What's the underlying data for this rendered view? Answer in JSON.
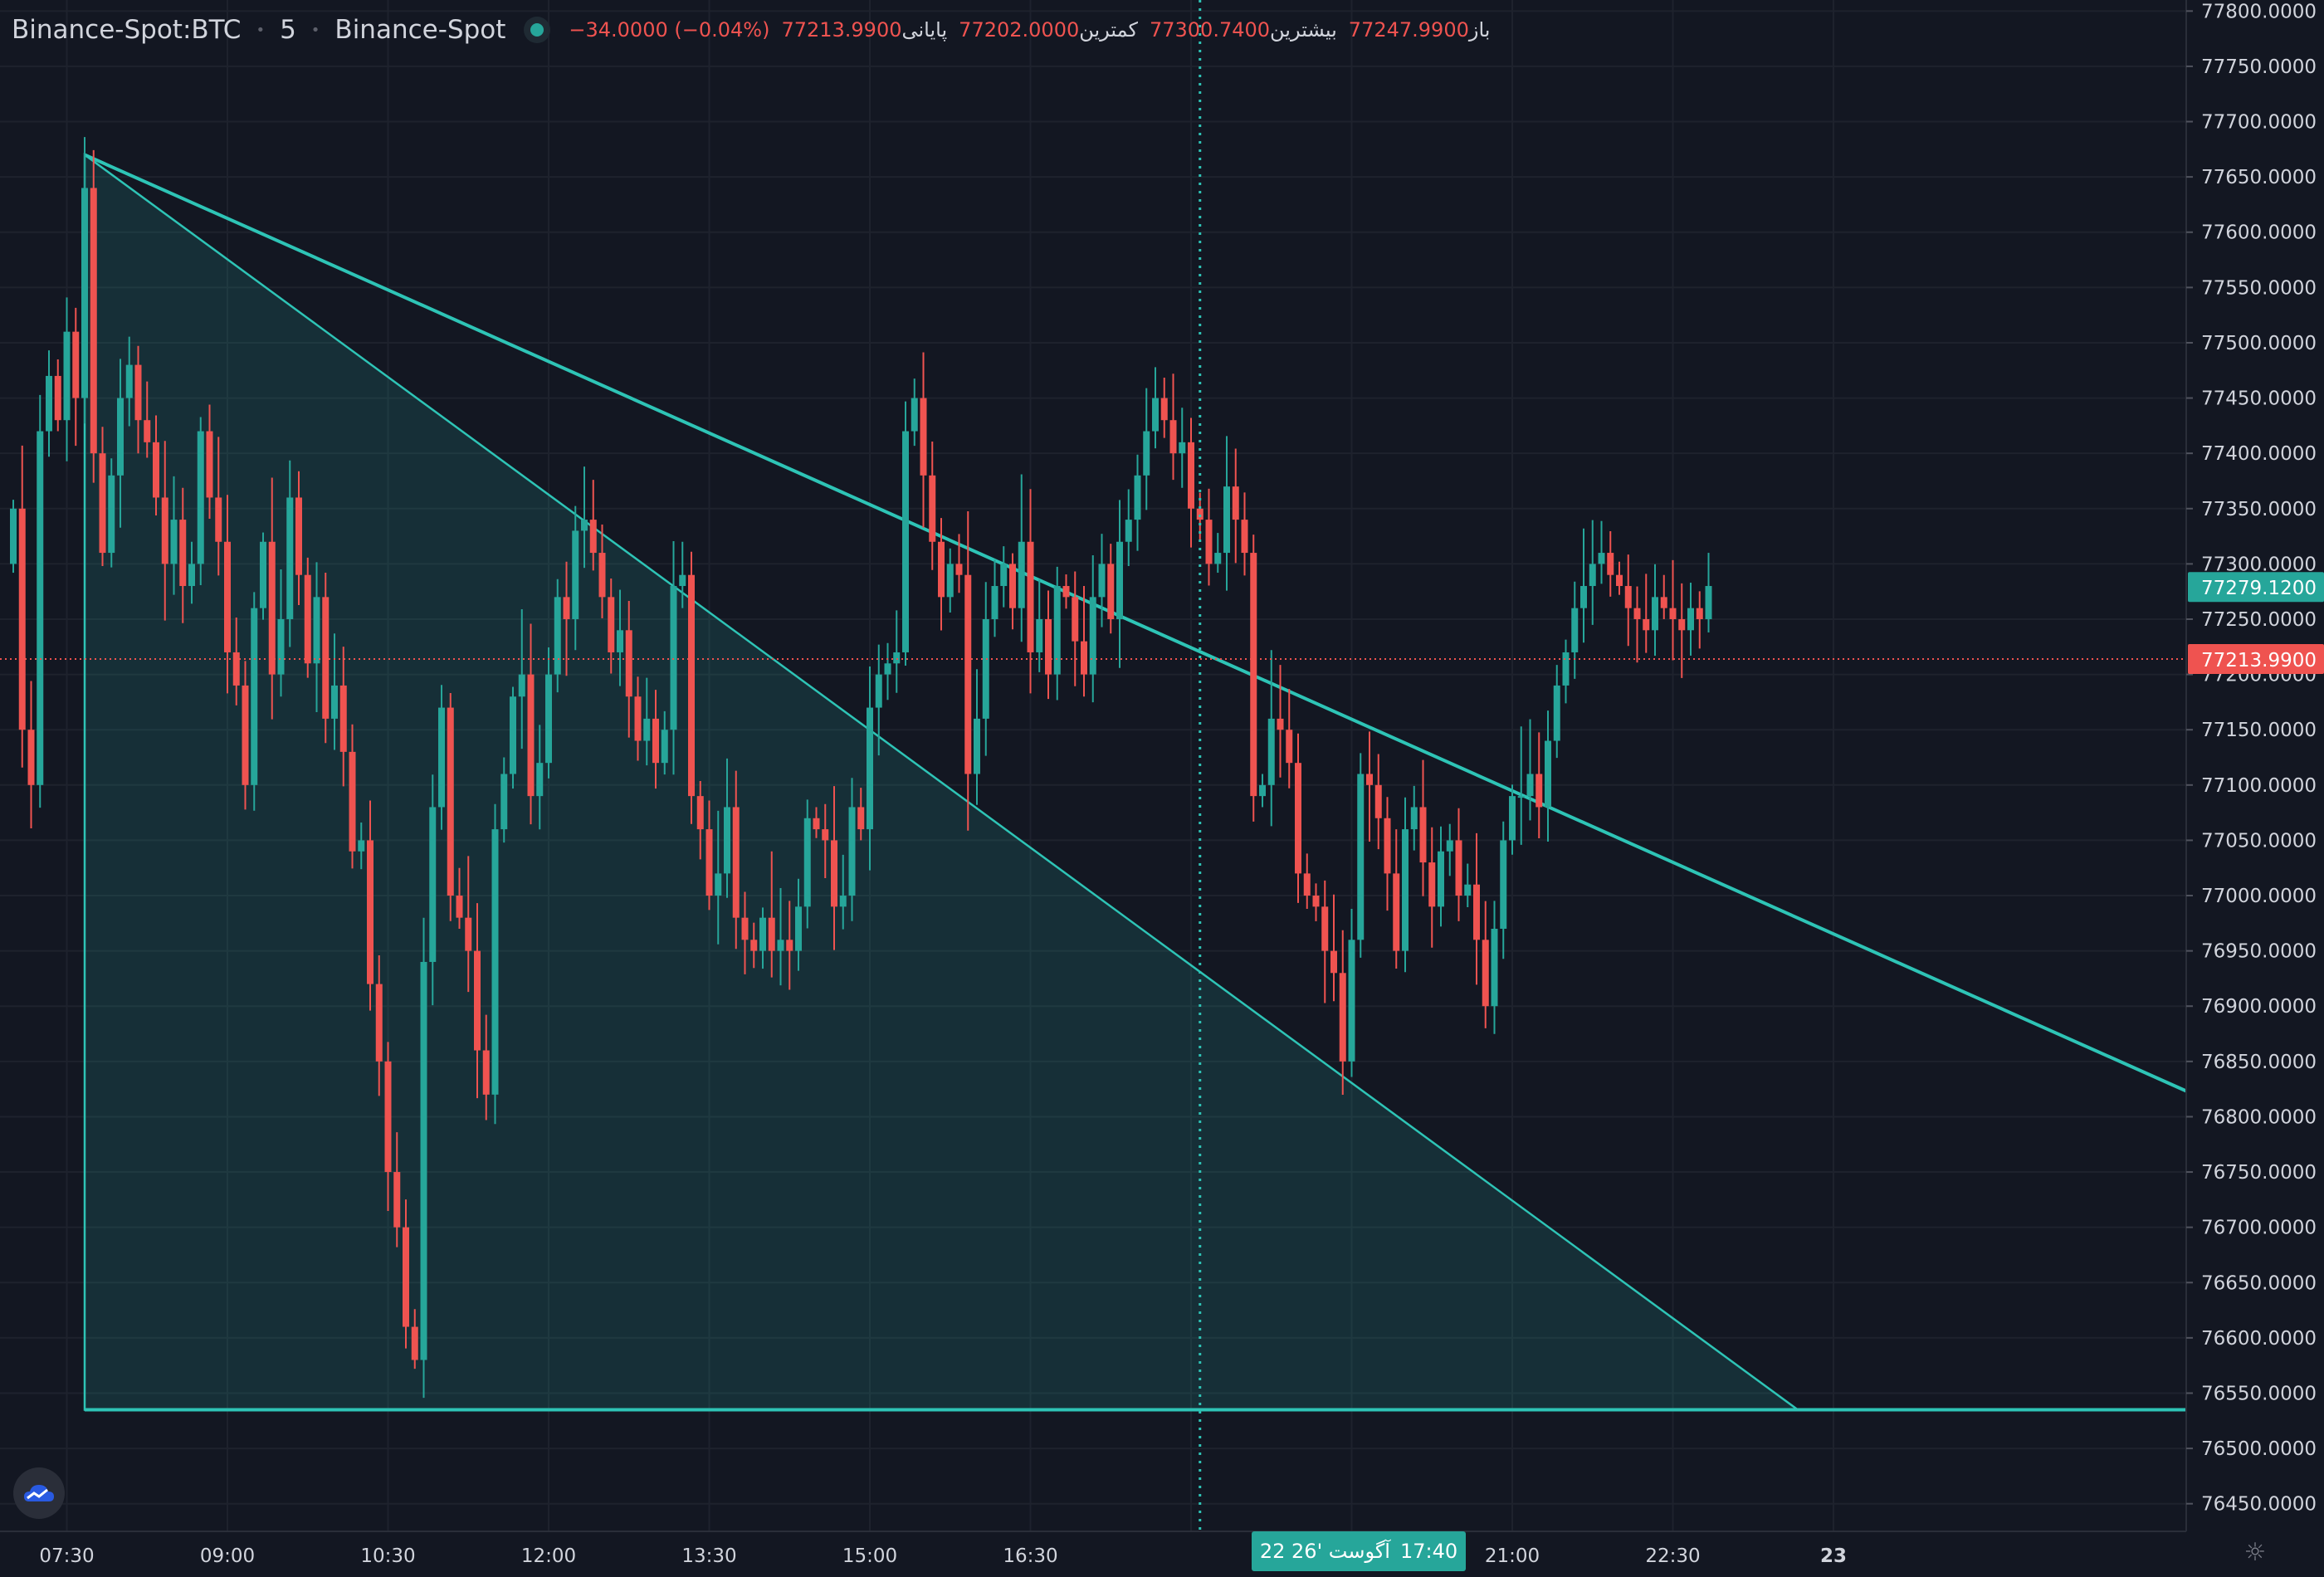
{
  "header": {
    "symbol": "Binance-Spot:BTC",
    "interval": "5",
    "exchange": "Binance-Spot",
    "ohlc": [
      {
        "label": "باز",
        "value": "77247.9900"
      },
      {
        "label": "بیشترین",
        "value": "77300.7400"
      },
      {
        "label": "کمترین",
        "value": "77202.0000"
      },
      {
        "label": "پایانی",
        "value": "77213.9900"
      },
      {
        "label": "",
        "value": "−34.0000 (−0.04%)"
      }
    ]
  },
  "crosshair_time_label": {
    "date": "22 آگوست '26",
    "time": "17:40"
  },
  "icons": {
    "logo": "tradingview-cloud-icon",
    "settings": "gear-icon"
  },
  "colors": {
    "background": "#131722",
    "up": "#26a69a",
    "down": "#ef5350",
    "grid": "#1e222d",
    "axis_text": "#d1d4dc",
    "drawing": "#2ec4b6"
  },
  "chart_data": {
    "type": "candlestick",
    "symbol": "Binance-Spot:BTC",
    "interval_minutes": 5,
    "y_ticks": [
      "77800.0000",
      "77750.0000",
      "77700.0000",
      "77650.0000",
      "77600.0000",
      "77550.0000",
      "77500.0000",
      "77450.0000",
      "77400.0000",
      "77350.0000",
      "77300.0000",
      "77250.0000",
      "77200.0000",
      "77150.0000",
      "77100.0000",
      "77050.0000",
      "77000.0000",
      "76950.0000",
      "76900.0000",
      "76850.0000",
      "76800.0000",
      "76750.0000",
      "76700.0000",
      "76650.0000",
      "76600.0000",
      "76550.0000",
      "76500.0000",
      "76450.0000"
    ],
    "ylim": [
      76425,
      77810
    ],
    "x_ticks": [
      {
        "label": "07:30",
        "index": 6
      },
      {
        "label": "09:00",
        "index": 24
      },
      {
        "label": "10:30",
        "index": 42
      },
      {
        "label": "12:00",
        "index": 60
      },
      {
        "label": "13:30",
        "index": 78
      },
      {
        "label": "15:00",
        "index": 96
      },
      {
        "label": "16:30",
        "index": 114
      },
      {
        "label": "18:00",
        "index": 132
      },
      {
        "label": "19:30",
        "index": 150
      },
      {
        "label": "21:00",
        "index": 168
      },
      {
        "label": "22:30",
        "index": 186
      },
      {
        "label": "23",
        "index": 204
      }
    ],
    "price_labels": [
      {
        "value": 77279.12,
        "text": "77279.1200",
        "color": "#26a69a"
      },
      {
        "value": 77213.99,
        "text": "77213.9900",
        "color": "#ef5350"
      }
    ],
    "crosshair_index": 133,
    "grid": true,
    "close": [
      77350,
      77150,
      77100,
      77420,
      77470,
      77430,
      77510,
      77450,
      77640,
      77400,
      77310,
      77380,
      77450,
      77480,
      77430,
      77410,
      77360,
      77300,
      77340,
      77280,
      77300,
      77420,
      77360,
      77320,
      77220,
      77190,
      77100,
      77260,
      77320,
      77200,
      77250,
      77360,
      77290,
      77210,
      77270,
      77160,
      77190,
      77130,
      77040,
      77050,
      76920,
      76850,
      76750,
      76700,
      76610,
      76580,
      76940,
      77080,
      77170,
      77000,
      76980,
      76950,
      76860,
      76820,
      77060,
      77110,
      77180,
      77200,
      77090,
      77120,
      77200,
      77270,
      77250,
      77330,
      77340,
      77310,
      77270,
      77220,
      77240,
      77180,
      77140,
      77160,
      77120,
      77150,
      77280,
      77290,
      77090,
      77060,
      77000,
      77020,
      77080,
      76980,
      76960,
      76950,
      76980,
      76950,
      76960,
      76950,
      76990,
      77070,
      77060,
      77050,
      76990,
      77000,
      77080,
      77060,
      77170,
      77200,
      77210,
      77220,
      77420,
      77450,
      77380,
      77320,
      77270,
      77300,
      77290,
      77110,
      77160,
      77250,
      77280,
      77300,
      77260,
      77320,
      77220,
      77250,
      77200,
      77280,
      77270,
      77230,
      77200,
      77270,
      77300,
      77250,
      77320,
      77340,
      77380,
      77420,
      77450,
      77430,
      77400,
      77410,
      77350,
      77340,
      77300,
      77310,
      77370,
      77340,
      77310,
      77090,
      77100,
      77160,
      77150,
      77120,
      77020,
      77000,
      76990,
      76950,
      76930,
      76850,
      76960,
      77110,
      77100,
      77070,
      77020,
      76950,
      77060,
      77080,
      77030,
      76990,
      77040,
      77050,
      77000,
      77010,
      76960,
      76900,
      76970,
      77050,
      77090,
      77090,
      77110,
      77080,
      77140,
      77190,
      77220,
      77260,
      77280,
      77300,
      77310,
      77290,
      77280,
      77260,
      77250,
      77240,
      77270,
      77260,
      77250,
      77240,
      77260,
      77250,
      77280
    ],
    "open": [
      77300,
      77350,
      77150,
      77100,
      77420,
      77470,
      77430,
      77510,
      77450,
      77640,
      77400,
      77310,
      77380,
      77450,
      77480,
      77430,
      77410,
      77360,
      77300,
      77340,
      77280,
      77300,
      77420,
      77360,
      77320,
      77220,
      77190,
      77100,
      77260,
      77320,
      77200,
      77250,
      77360,
      77290,
      77210,
      77270,
      77160,
      77190,
      77130,
      77040,
      77050,
      76920,
      76850,
      76750,
      76700,
      76610,
      76580,
      76940,
      77080,
      77170,
      77000,
      76980,
      76950,
      76860,
      76820,
      77060,
      77110,
      77180,
      77200,
      77090,
      77120,
      77200,
      77270,
      77250,
      77330,
      77340,
      77310,
      77270,
      77220,
      77240,
      77180,
      77140,
      77160,
      77120,
      77150,
      77280,
      77290,
      77090,
      77060,
      77000,
      77020,
      77080,
      76980,
      76960,
      76950,
      76980,
      76950,
      76960,
      76950,
      76990,
      77070,
      77060,
      77050,
      76990,
      77000,
      77080,
      77060,
      77170,
      77200,
      77210,
      77220,
      77420,
      77450,
      77380,
      77320,
      77270,
      77300,
      77290,
      77110,
      77160,
      77250,
      77280,
      77300,
      77260,
      77320,
      77220,
      77250,
      77200,
      77280,
      77270,
      77230,
      77200,
      77270,
      77300,
      77250,
      77320,
      77340,
      77380,
      77420,
      77450,
      77430,
      77400,
      77410,
      77350,
      77340,
      77300,
      77310,
      77370,
      77340,
      77310,
      77090,
      77100,
      77160,
      77150,
      77120,
      77020,
      77000,
      76990,
      76950,
      76930,
      76850,
      76960,
      77110,
      77100,
      77070,
      77020,
      76950,
      77060,
      77080,
      77030,
      76990,
      77040,
      77050,
      77000,
      77010,
      76960,
      76900,
      76970,
      77050,
      77090,
      77090,
      77110,
      77080,
      77140,
      77190,
      77220,
      77260,
      77280,
      77300,
      77310,
      77290,
      77280,
      77260,
      77250,
      77240,
      77270,
      77260,
      77250,
      77240,
      77260,
      77250
    ],
    "drawings": [
      {
        "type": "trendline",
        "from": {
          "index": 8,
          "price": 77670
        },
        "to": {
          "index": 250,
          "price": 76800
        }
      },
      {
        "type": "triangle",
        "points": [
          {
            "index": 8,
            "price": 77670
          },
          {
            "index": 8,
            "price": 76535
          },
          {
            "index": 200,
            "price": 76535
          }
        ]
      },
      {
        "type": "hline",
        "from": {
          "index": 8,
          "price": 76535
        },
        "to": {
          "index": 250,
          "price": 76535
        }
      }
    ]
  }
}
